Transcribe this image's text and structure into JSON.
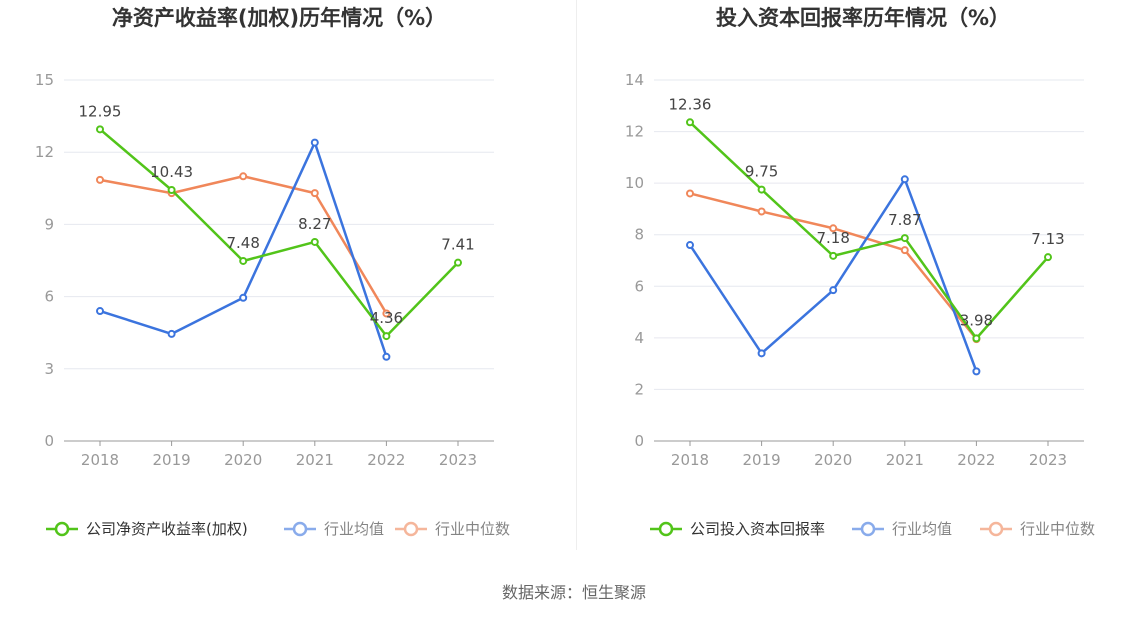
{
  "source": "数据来源：恒生聚源",
  "colors": {
    "company": "#52c41a",
    "avg": "#3b74de",
    "median": "#f0875a",
    "grid": "#e6e8ef",
    "axis": "#999999"
  },
  "chart_data": [
    {
      "type": "line",
      "title": "净资产收益率(加权)历年情况（%）",
      "categories": [
        "2018",
        "2019",
        "2020",
        "2021",
        "2022",
        "2023"
      ],
      "ylim": [
        0,
        15
      ],
      "yticks": [
        0,
        3,
        6,
        9,
        12,
        15
      ],
      "grid": true,
      "legend": "bottom",
      "series": [
        {
          "key": "company",
          "name": "公司净资产收益率(加权)",
          "values": [
            12.95,
            10.43,
            7.48,
            8.27,
            4.36,
            7.41
          ],
          "labels": [
            "12.95",
            "10.43",
            "7.48",
            "8.27",
            "4.36",
            "7.41"
          ]
        },
        {
          "key": "avg",
          "name": "行业均值",
          "values": [
            5.4,
            4.45,
            5.95,
            12.4,
            3.5,
            null
          ]
        },
        {
          "key": "median",
          "name": "行业中位数",
          "values": [
            10.85,
            10.3,
            11.0,
            10.3,
            5.3,
            null
          ]
        }
      ]
    },
    {
      "type": "line",
      "title": "投入资本回报率历年情况（%）",
      "categories": [
        "2018",
        "2019",
        "2020",
        "2021",
        "2022",
        "2023"
      ],
      "ylim": [
        0,
        14
      ],
      "yticks": [
        0,
        2,
        4,
        6,
        8,
        10,
        12,
        14
      ],
      "grid": true,
      "legend": "bottom",
      "series": [
        {
          "key": "company",
          "name": "公司投入资本回报率",
          "values": [
            12.36,
            9.75,
            7.18,
            7.87,
            3.98,
            7.13
          ],
          "labels": [
            "12.36",
            "9.75",
            "7.18",
            "7.87",
            "3.98",
            "7.13"
          ]
        },
        {
          "key": "avg",
          "name": "行业均值",
          "values": [
            7.6,
            3.4,
            5.85,
            10.15,
            2.7,
            null
          ]
        },
        {
          "key": "median",
          "name": "行业中位数",
          "values": [
            9.6,
            8.9,
            8.25,
            7.4,
            3.95,
            null
          ]
        }
      ]
    }
  ]
}
